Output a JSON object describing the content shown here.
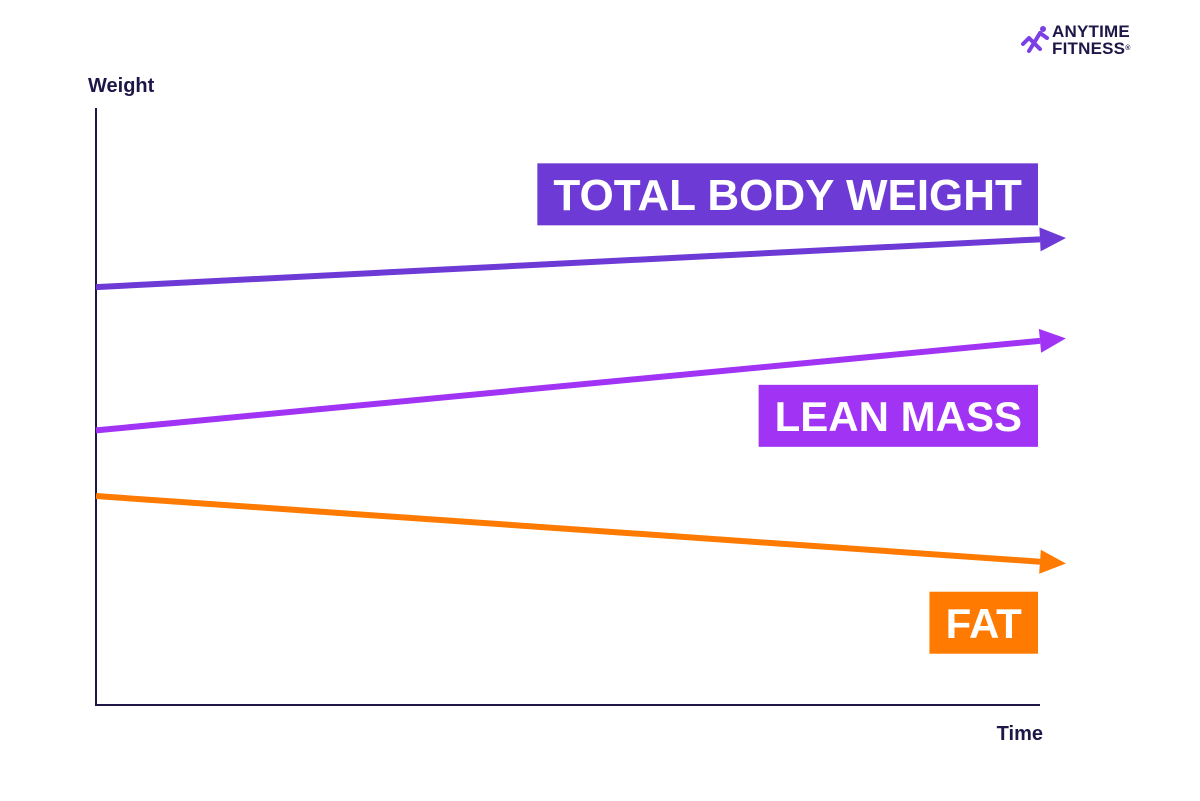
{
  "brand": {
    "line1": "ANYTIME",
    "line2": "FITNESS",
    "reg": "®",
    "logo_color": "#7b3fe4"
  },
  "chart_data": {
    "type": "line",
    "xlabel": "Time",
    "ylabel": "Weight",
    "x": [
      0,
      1
    ],
    "ylim": [
      0,
      100
    ],
    "grid": false,
    "legend": "inline labels",
    "series": [
      {
        "name": "TOTAL BODY WEIGHT",
        "values": [
          70,
          78
        ],
        "color": "#6e3ad6",
        "label_position": "above-right"
      },
      {
        "name": "LEAN MASS",
        "values": [
          46,
          61
        ],
        "color": "#a133f5",
        "label_position": "below-right"
      },
      {
        "name": "FAT",
        "values": [
          35,
          24
        ],
        "color": "#ff7a00",
        "label_position": "below-right"
      }
    ]
  }
}
